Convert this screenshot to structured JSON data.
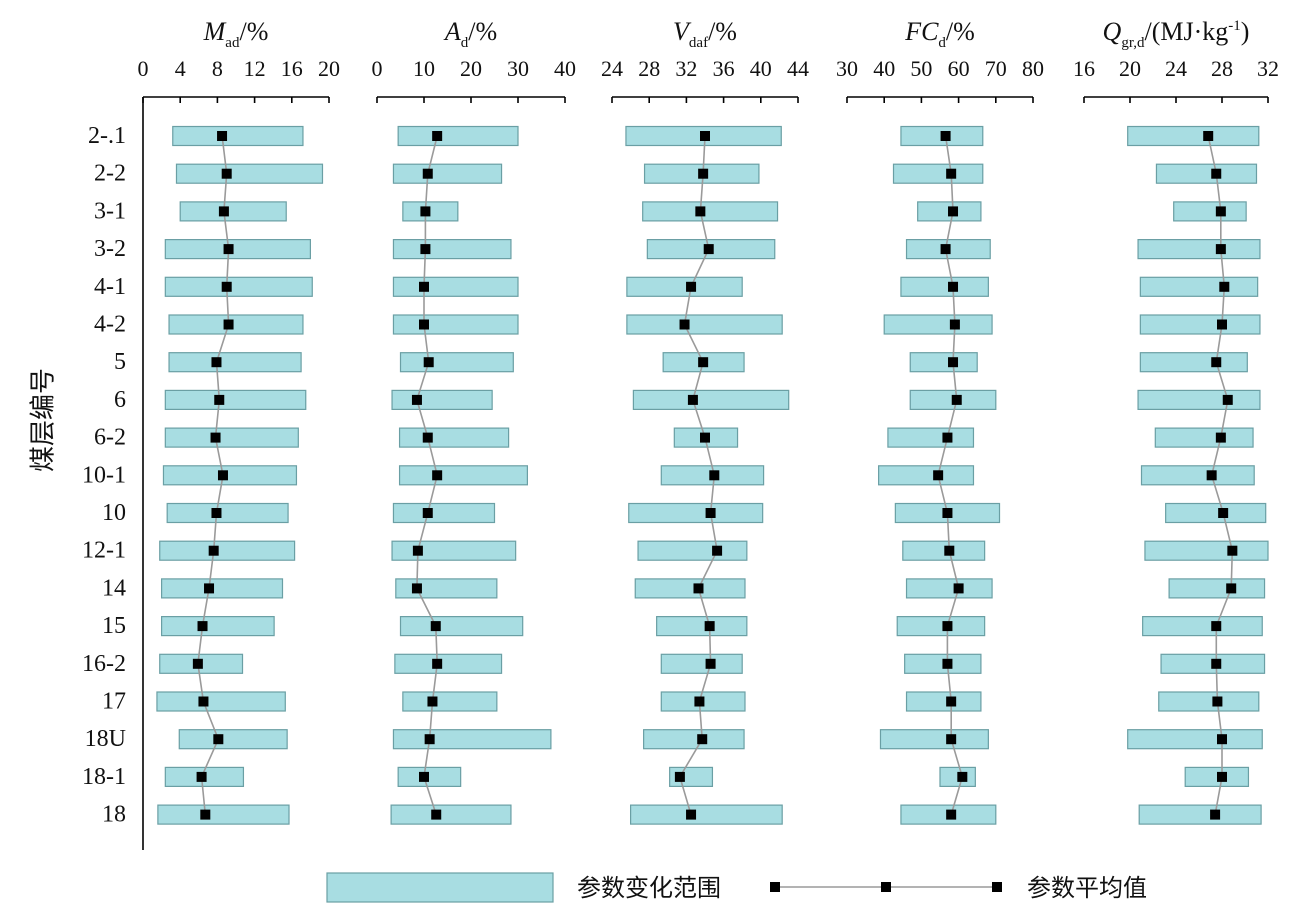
{
  "chart_data": {
    "type": "range-bar",
    "ylabel": "煤层编号",
    "categories": [
      "2-.1",
      "2-2",
      "3-1",
      "3-2",
      "4-1",
      "4-2",
      "5",
      "6",
      "6-2",
      "10-1",
      "10",
      "12-1",
      "14",
      "15",
      "16-2",
      "17",
      "18U",
      "18-1",
      "18"
    ],
    "legend": {
      "range_label": "参数变化范围",
      "mean_label": "参数平均值",
      "placement": "bottom"
    },
    "colors": {
      "bar_fill": "#a8dde2",
      "bar_stroke": "#6a9fa4",
      "mean_point": "#000000",
      "mean_line": "#9a9a9a"
    },
    "panels": [
      {
        "title": {
          "sym": "M",
          "sub": "ad",
          "sup": "",
          "unit": "/%"
        },
        "xlim": [
          0,
          20
        ],
        "ticks": [
          0,
          4,
          8,
          12,
          16,
          20
        ],
        "tick_labels": [
          "0",
          "4",
          "8",
          "12",
          "16",
          "20"
        ],
        "min": [
          3.2,
          3.6,
          4.0,
          2.4,
          2.4,
          2.8,
          2.8,
          2.4,
          2.4,
          2.2,
          2.6,
          1.8,
          2.0,
          2.0,
          1.8,
          1.5,
          3.9,
          2.4,
          1.6
        ],
        "max": [
          17.2,
          19.3,
          15.4,
          18.0,
          18.2,
          17.2,
          17.0,
          17.5,
          16.7,
          16.5,
          15.6,
          16.3,
          15.0,
          14.1,
          10.7,
          15.3,
          15.5,
          10.8,
          15.7
        ],
        "mean": [
          8.5,
          9.0,
          8.7,
          9.2,
          9.0,
          9.2,
          7.9,
          8.2,
          7.8,
          8.6,
          7.9,
          7.6,
          7.1,
          6.4,
          5.9,
          6.5,
          8.1,
          6.3,
          6.7
        ]
      },
      {
        "title": {
          "sym": "A",
          "sub": "d",
          "sup": "",
          "unit": "/%"
        },
        "xlim": [
          0,
          40
        ],
        "ticks": [
          0,
          10,
          20,
          30,
          40
        ],
        "tick_labels": [
          "0",
          "10",
          "20",
          "30",
          "40"
        ],
        "min": [
          4.5,
          3.5,
          5.5,
          3.5,
          3.5,
          3.5,
          5.0,
          3.2,
          4.8,
          4.8,
          3.5,
          3.2,
          4.0,
          5.0,
          3.8,
          5.5,
          3.5,
          4.5,
          3.0
        ],
        "max": [
          30.0,
          26.5,
          17.2,
          28.5,
          30.0,
          30.0,
          29.0,
          24.5,
          28.0,
          32.0,
          25.0,
          29.5,
          25.5,
          31.0,
          26.5,
          25.5,
          37.0,
          17.8,
          28.5
        ],
        "mean": [
          12.8,
          10.8,
          10.3,
          10.3,
          10.0,
          10.0,
          11.0,
          8.5,
          10.8,
          12.8,
          10.8,
          8.7,
          8.5,
          12.5,
          12.8,
          11.8,
          11.2,
          10.0,
          12.6
        ]
      },
      {
        "title": {
          "sym": "V",
          "sub": "daf",
          "sup": "",
          "unit": "/%"
        },
        "xlim": [
          24,
          44
        ],
        "ticks": [
          24,
          28,
          32,
          36,
          40,
          44
        ],
        "tick_labels": [
          "24",
          "28",
          "32",
          "36",
          "40",
          "44"
        ],
        "min": [
          25.5,
          27.5,
          27.3,
          27.8,
          25.6,
          25.6,
          29.5,
          26.3,
          30.7,
          29.3,
          25.8,
          26.8,
          26.5,
          28.8,
          29.3,
          29.3,
          27.4,
          30.2,
          26.0
        ],
        "max": [
          42.2,
          39.8,
          41.8,
          41.5,
          38.0,
          42.3,
          38.2,
          43.0,
          37.5,
          40.3,
          40.2,
          38.5,
          38.3,
          38.5,
          38.0,
          38.3,
          38.2,
          34.8,
          42.3
        ],
        "mean": [
          34.0,
          33.8,
          33.5,
          34.4,
          32.5,
          31.8,
          33.8,
          32.7,
          34.0,
          35.0,
          34.6,
          35.3,
          33.3,
          34.5,
          34.6,
          33.4,
          33.7,
          31.3,
          32.5
        ]
      },
      {
        "title": {
          "sym": "FC",
          "sub": "d",
          "sup": "",
          "unit": "/%"
        },
        "xlim": [
          30,
          80
        ],
        "ticks": [
          30,
          40,
          50,
          60,
          70,
          80
        ],
        "tick_labels": [
          "30",
          "40",
          "50",
          "60",
          "70",
          "80"
        ],
        "min": [
          44.5,
          42.5,
          49.0,
          46.0,
          44.5,
          40.0,
          47.0,
          47.0,
          41.0,
          38.5,
          43.0,
          45.0,
          46.0,
          43.5,
          45.5,
          46.0,
          39.0,
          55.0,
          44.5
        ],
        "max": [
          66.5,
          66.5,
          66.0,
          68.5,
          68.0,
          69.0,
          65.0,
          70.0,
          64.0,
          64.0,
          71.0,
          67.0,
          69.0,
          67.0,
          66.0,
          66.0,
          68.0,
          64.5,
          70.0
        ],
        "mean": [
          56.5,
          58.0,
          58.5,
          56.5,
          58.5,
          59.0,
          58.5,
          59.5,
          57.0,
          54.5,
          57.0,
          57.5,
          60.0,
          57.0,
          57.0,
          58.0,
          58.0,
          61.0,
          58.0
        ]
      },
      {
        "title": {
          "sym": "Q",
          "sub": "gr,d",
          "sup": "-1",
          "unit": "/(MJ·kg"
        },
        "xlim": [
          16,
          32
        ],
        "ticks": [
          16,
          20,
          24,
          28,
          32
        ],
        "tick_labels": [
          "16",
          "20",
          "24",
          "28",
          "32"
        ],
        "min": [
          19.8,
          22.3,
          23.8,
          20.7,
          20.9,
          20.9,
          20.9,
          20.7,
          22.2,
          21.0,
          23.1,
          21.3,
          23.4,
          21.1,
          22.7,
          22.5,
          19.8,
          24.8,
          20.8
        ],
        "max": [
          31.2,
          31.0,
          30.1,
          31.3,
          31.1,
          31.3,
          30.2,
          31.3,
          30.7,
          30.8,
          31.8,
          32.0,
          31.7,
          31.5,
          31.7,
          31.2,
          31.5,
          30.3,
          31.4
        ],
        "mean": [
          26.8,
          27.5,
          27.9,
          27.9,
          28.2,
          28.0,
          27.5,
          28.5,
          27.9,
          27.1,
          28.1,
          28.9,
          28.8,
          27.5,
          27.5,
          27.6,
          28.0,
          28.0,
          27.4
        ]
      }
    ]
  }
}
